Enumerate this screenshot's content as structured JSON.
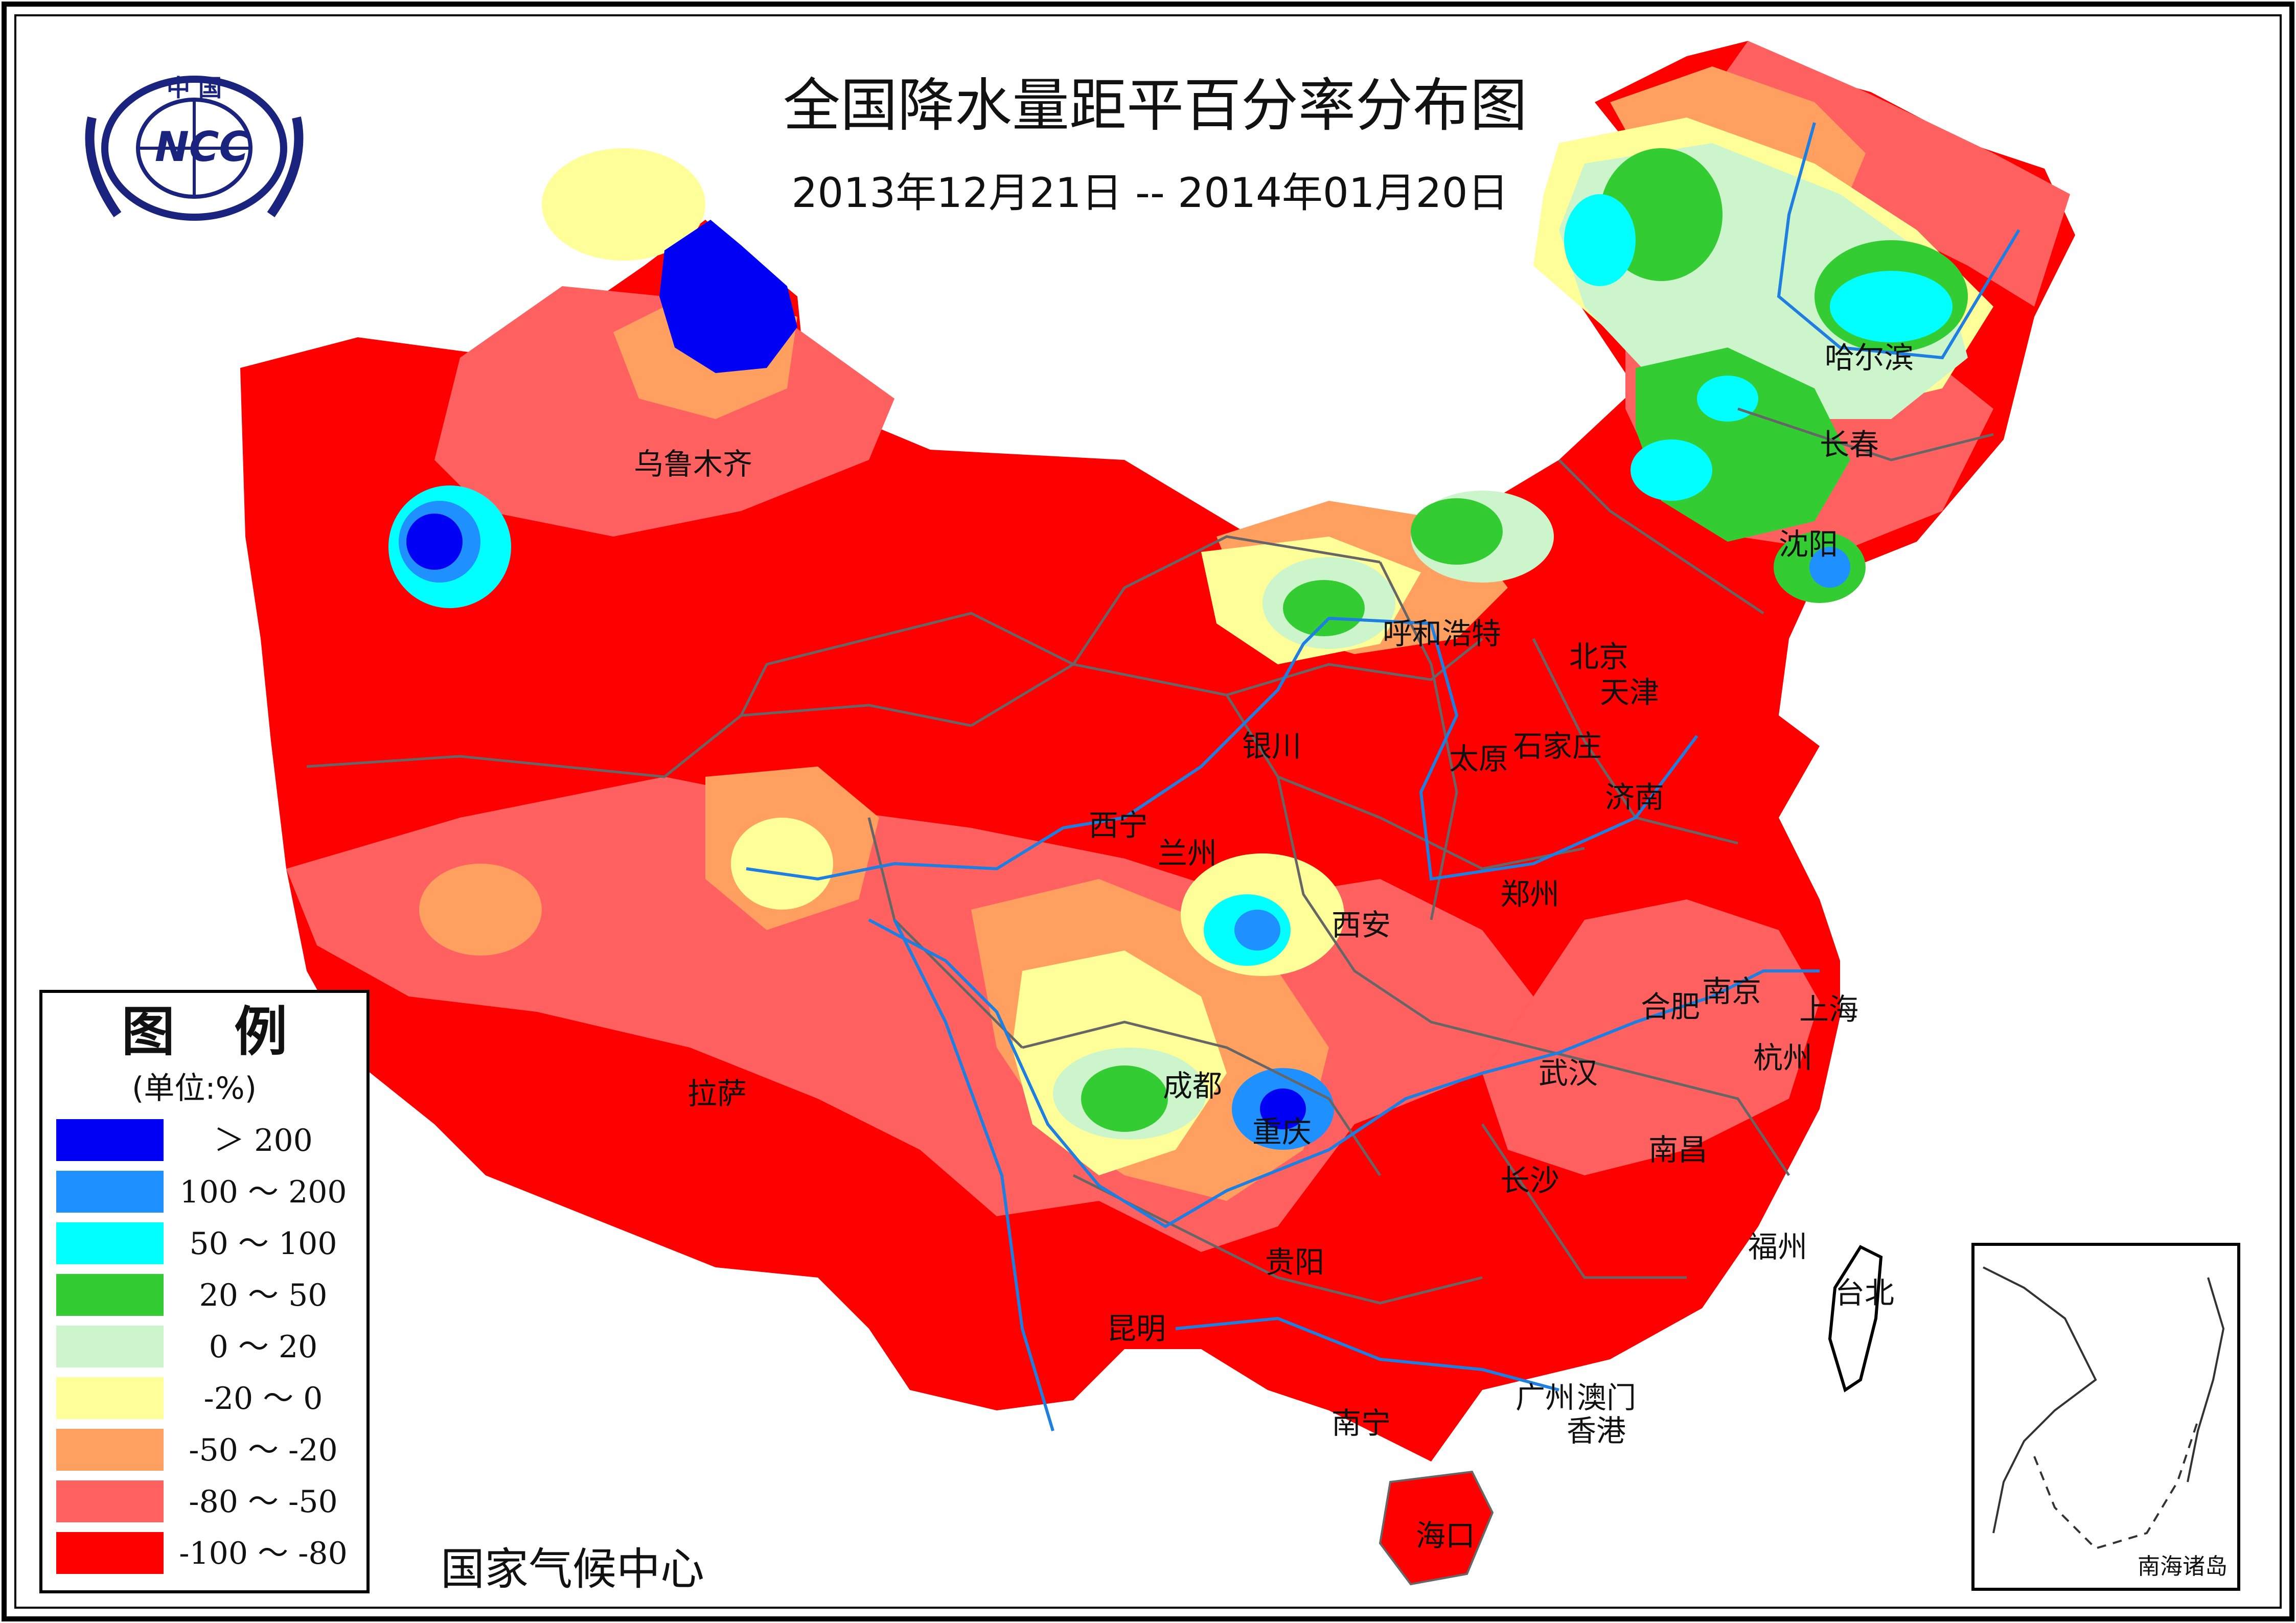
{
  "title": "全国降水量距平百分率分布图",
  "subtitle": "2013年12月21日 -- 2014年01月20日",
  "logo": {
    "top_text": "中 国",
    "center_text": "NCC"
  },
  "credit": "国家气候中心",
  "inset_label": "南海诸岛",
  "colors": {
    "gt200": "#0000f5",
    "c100_200": "#1e90ff",
    "c50_100": "#00ffff",
    "c20_50": "#33cc33",
    "c0_20": "#ccf5cc",
    "cm20_0": "#ffff99",
    "cm50_m20": "#ffa060",
    "cm80_m50": "#ff6060",
    "cm100_m80": "#ff0000",
    "river": "#1e7fe0",
    "border": "#666666"
  },
  "legend": {
    "title": "图 例",
    "unit": "(单位:%)",
    "items": [
      {
        "label": "＞ 200",
        "color_key": "gt200"
      },
      {
        "label": "100 ～ 200",
        "color_key": "c100_200"
      },
      {
        "label": "50 ～ 100",
        "color_key": "c50_100"
      },
      {
        "label": "20 ～ 50",
        "color_key": "c20_50"
      },
      {
        "label": "0 ～ 20",
        "color_key": "c0_20"
      },
      {
        "label": "-20 ～ 0",
        "color_key": "cm20_0"
      },
      {
        "label": "-50 ～ -20",
        "color_key": "cm50_m20"
      },
      {
        "label": "-80 ～ -50",
        "color_key": "cm80_m50"
      },
      {
        "label": "-100 ～ -80",
        "color_key": "cm100_m80"
      }
    ]
  },
  "cities": [
    "乌鲁木齐",
    "哈尔滨",
    "长春",
    "沈阳",
    "呼和浩特",
    "北京",
    "天津",
    "银川",
    "太原",
    "石家庄",
    "济南",
    "西宁",
    "兰州",
    "郑州",
    "西安",
    "南京",
    "合肥",
    "上海",
    "杭州",
    "武汉",
    "成都",
    "重庆",
    "拉萨",
    "长沙",
    "南昌",
    "贵阳",
    "福州",
    "台北",
    "昆明",
    "广州",
    "澳门",
    "香港",
    "南宁",
    "海口"
  ]
}
